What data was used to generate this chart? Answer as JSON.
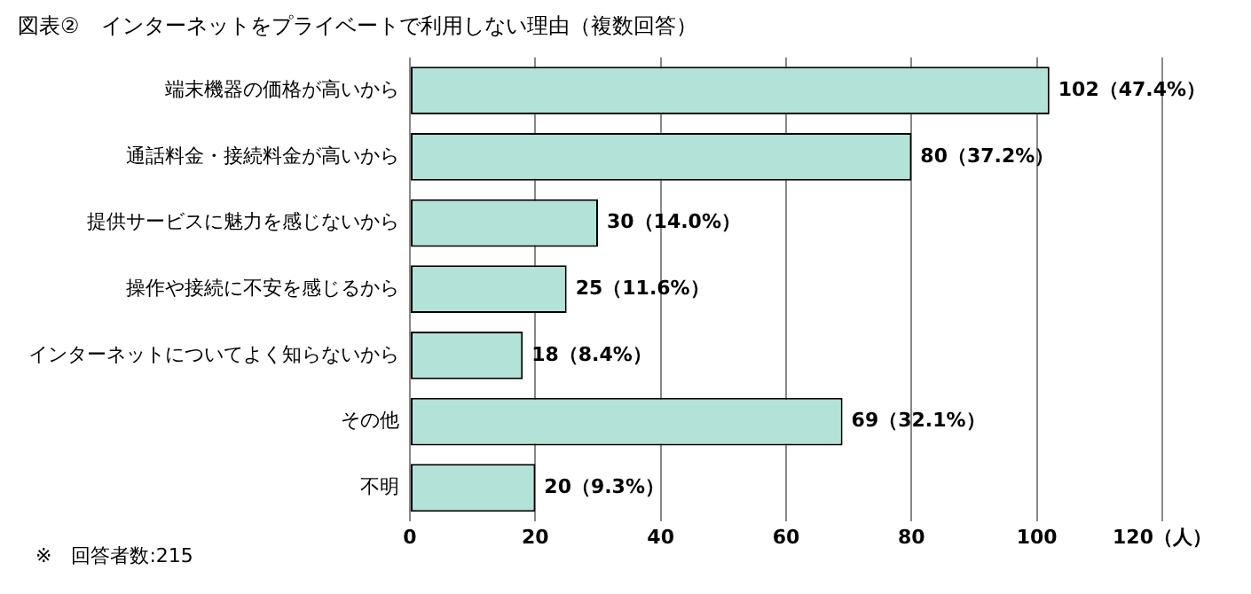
{
  "chart_data": {
    "type": "bar",
    "orientation": "horizontal",
    "title": "図表②　インターネットをプライベートで利用しない理由（複数回答）",
    "categories": [
      "端末機器の価格が高いから",
      "通話料金・接続料金が高いから",
      "提供サービスに魅力を感じないから",
      "操作や接続に不安を感じるから",
      "インターネットについてよく知らないから",
      "その他",
      "不明"
    ],
    "values": [
      102,
      80,
      30,
      25,
      18,
      69,
      20
    ],
    "value_labels": [
      "102（47.4%）",
      "80（37.2%）",
      "30（14.0%）",
      "25（11.6%）",
      "18（8.4%）",
      "69（32.1%）",
      "20（9.3%）"
    ],
    "color": "#b3e2d8",
    "xlim": [
      0,
      120
    ],
    "xticks": [
      0,
      20,
      40,
      60,
      80,
      100,
      {
        "value": 120,
        "label": "120（人）"
      }
    ],
    "grid": "x",
    "annotations": [
      "※　回答者数:215"
    ]
  }
}
